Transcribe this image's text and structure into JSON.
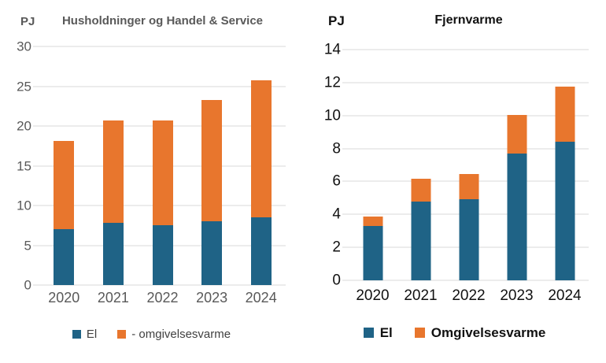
{
  "page": {
    "background": "#FFFFFF"
  },
  "chart_data": [
    {
      "id": "households",
      "type": "bar",
      "stacked": true,
      "unit_label": "PJ",
      "title": "Husholdninger og Handel & Service",
      "categories": [
        "2020",
        "2021",
        "2022",
        "2023",
        "2024"
      ],
      "series": [
        {
          "name": "El",
          "color": "#1F6386",
          "values": [
            7.0,
            7.8,
            7.5,
            8.0,
            8.5
          ]
        },
        {
          "name": "- omgivelsesvarme",
          "color": "#E8762D",
          "values": [
            11.1,
            12.9,
            13.2,
            15.3,
            17.2
          ]
        }
      ],
      "ylim": [
        0,
        30
      ],
      "yticks": [
        0,
        5,
        10,
        15,
        20,
        25,
        30
      ],
      "grid": true,
      "legend_position": "bottom",
      "text_color": "#595959",
      "gridline_color": "#D9D9D9"
    },
    {
      "id": "fjernvarme",
      "type": "bar",
      "stacked": true,
      "unit_label": "PJ",
      "title": "Fjernvarme",
      "categories": [
        "2020",
        "2021",
        "2022",
        "2023",
        "2024"
      ],
      "series": [
        {
          "name": "El",
          "color": "#1F6386",
          "values": [
            3.3,
            4.8,
            4.9,
            7.7,
            8.4
          ]
        },
        {
          "name": "Omgivelsesvarme",
          "color": "#E8762D",
          "values": [
            0.55,
            1.35,
            1.55,
            2.35,
            3.35
          ]
        }
      ],
      "ylim": [
        0,
        14
      ],
      "yticks": [
        0,
        2,
        4,
        6,
        8,
        10,
        12,
        14
      ],
      "grid": true,
      "legend_position": "bottom",
      "text_color": "#111111",
      "gridline_color": "#D9D9D9"
    }
  ]
}
